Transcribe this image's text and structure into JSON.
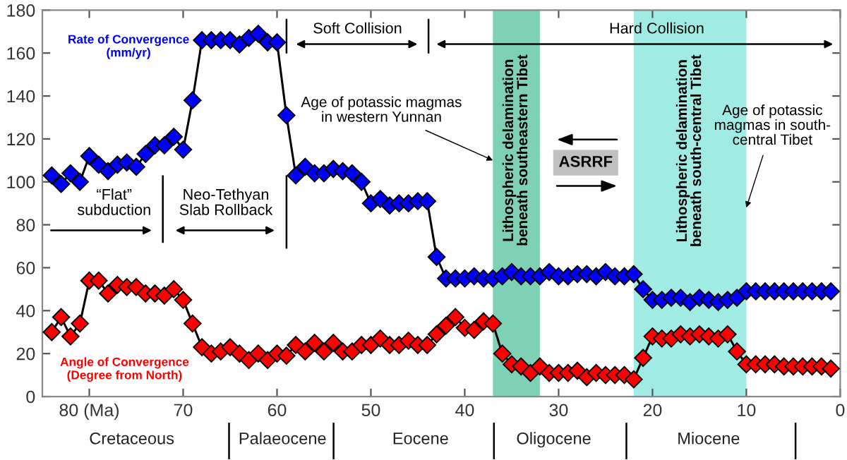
{
  "chart_data": {
    "type": "line",
    "marker": "diamond",
    "line_style": "solid",
    "grid": false,
    "legend": false,
    "x": [
      84,
      83,
      82,
      81,
      80,
      79,
      78,
      77,
      76,
      75,
      74,
      73,
      72,
      71,
      70,
      69,
      68,
      67,
      66,
      65,
      64,
      63,
      62,
      61,
      60,
      59,
      58,
      57,
      56,
      55,
      54,
      53,
      52,
      51,
      50,
      49,
      48,
      47,
      46,
      45,
      44,
      43,
      42,
      41,
      40,
      39,
      38,
      37,
      36,
      35,
      34,
      33,
      32,
      31,
      30,
      29,
      28,
      27,
      26,
      25,
      24,
      23,
      22,
      21,
      20,
      19,
      18,
      17,
      16,
      15,
      14,
      13,
      12,
      11,
      10,
      9,
      8,
      7,
      6,
      5,
      4,
      3,
      2,
      1
    ],
    "series": [
      {
        "name": "Rate of Convergence\n(mm/yr)",
        "color": "#0000ff",
        "values": [
          103,
          99,
          104,
          100,
          112,
          108,
          105,
          108,
          109,
          107,
          113,
          117,
          117,
          121,
          115,
          138,
          166,
          166,
          166,
          166,
          164,
          167,
          169,
          165,
          165,
          131,
          103,
          107,
          104,
          104,
          106,
          105,
          104,
          100,
          90,
          92,
          89,
          90,
          90,
          91,
          91,
          65,
          55,
          55,
          55,
          56,
          55,
          55,
          56,
          58,
          56,
          56,
          56,
          58,
          56,
          56,
          57,
          57,
          56,
          58,
          56,
          56,
          57,
          50,
          45,
          45,
          46,
          46,
          44,
          46,
          45,
          44,
          45,
          46,
          49,
          49,
          49,
          49,
          49,
          49,
          49,
          49,
          49,
          49
        ]
      },
      {
        "name": "Angle of Convergence\n(Degree from North)",
        "color": "#ff0000",
        "values": [
          30,
          37,
          28,
          34,
          54,
          54,
          48,
          52,
          51,
          51,
          48,
          48,
          47,
          50,
          45,
          34,
          23,
          20,
          21,
          23,
          20,
          17,
          20,
          17,
          20,
          19,
          24,
          21,
          25,
          21,
          25,
          21,
          21,
          24,
          24,
          27,
          24,
          24,
          26,
          24,
          24,
          29,
          33,
          37,
          32,
          31,
          35,
          34,
          20,
          15,
          14,
          11,
          14,
          11,
          11,
          11,
          12,
          9,
          11,
          10,
          10,
          10,
          8,
          18,
          28,
          27,
          27,
          29,
          28,
          29,
          28,
          27,
          29,
          21,
          15,
          15,
          15,
          15,
          14,
          14,
          14,
          14,
          14,
          13
        ]
      }
    ],
    "xlim": [
      85,
      0
    ],
    "xticks": [
      {
        "value": 80,
        "label": "80 (Ma)"
      },
      70,
      60,
      50,
      40,
      30,
      20,
      10,
      0
    ],
    "ylim": [
      0,
      180
    ],
    "yticks": [
      0,
      20,
      40,
      60,
      80,
      100,
      120,
      140,
      160,
      180
    ],
    "bands": [
      {
        "axis": "x",
        "from": 37,
        "to": 32,
        "label": "Lithospheric delamination\nbeneath southeastern Tibet",
        "color": "#7fd1b5"
      },
      {
        "axis": "x",
        "from": 22,
        "to": 10,
        "label": "Lithospheric delamination\nbeneath south-central Tibet",
        "color": "#a0ece4"
      }
    ],
    "annotations": [
      "“Flat”\nsubduction",
      "Neo-Tethyan\nSlab Rollback",
      "Soft Collision",
      "Hard Collision",
      {
        "text": "Age of potassic magmas\nin western Yunnan",
        "x": 37,
        "y": 110
      },
      "ASRRF",
      {
        "text": "Age of potassic\nmagmas in south-\ncentral Tibet",
        "x": 10,
        "y": 88
      },
      "Cretaceous",
      "Palaeocene",
      "Eocene",
      "Oligocene",
      "Miocene"
    ]
  }
}
